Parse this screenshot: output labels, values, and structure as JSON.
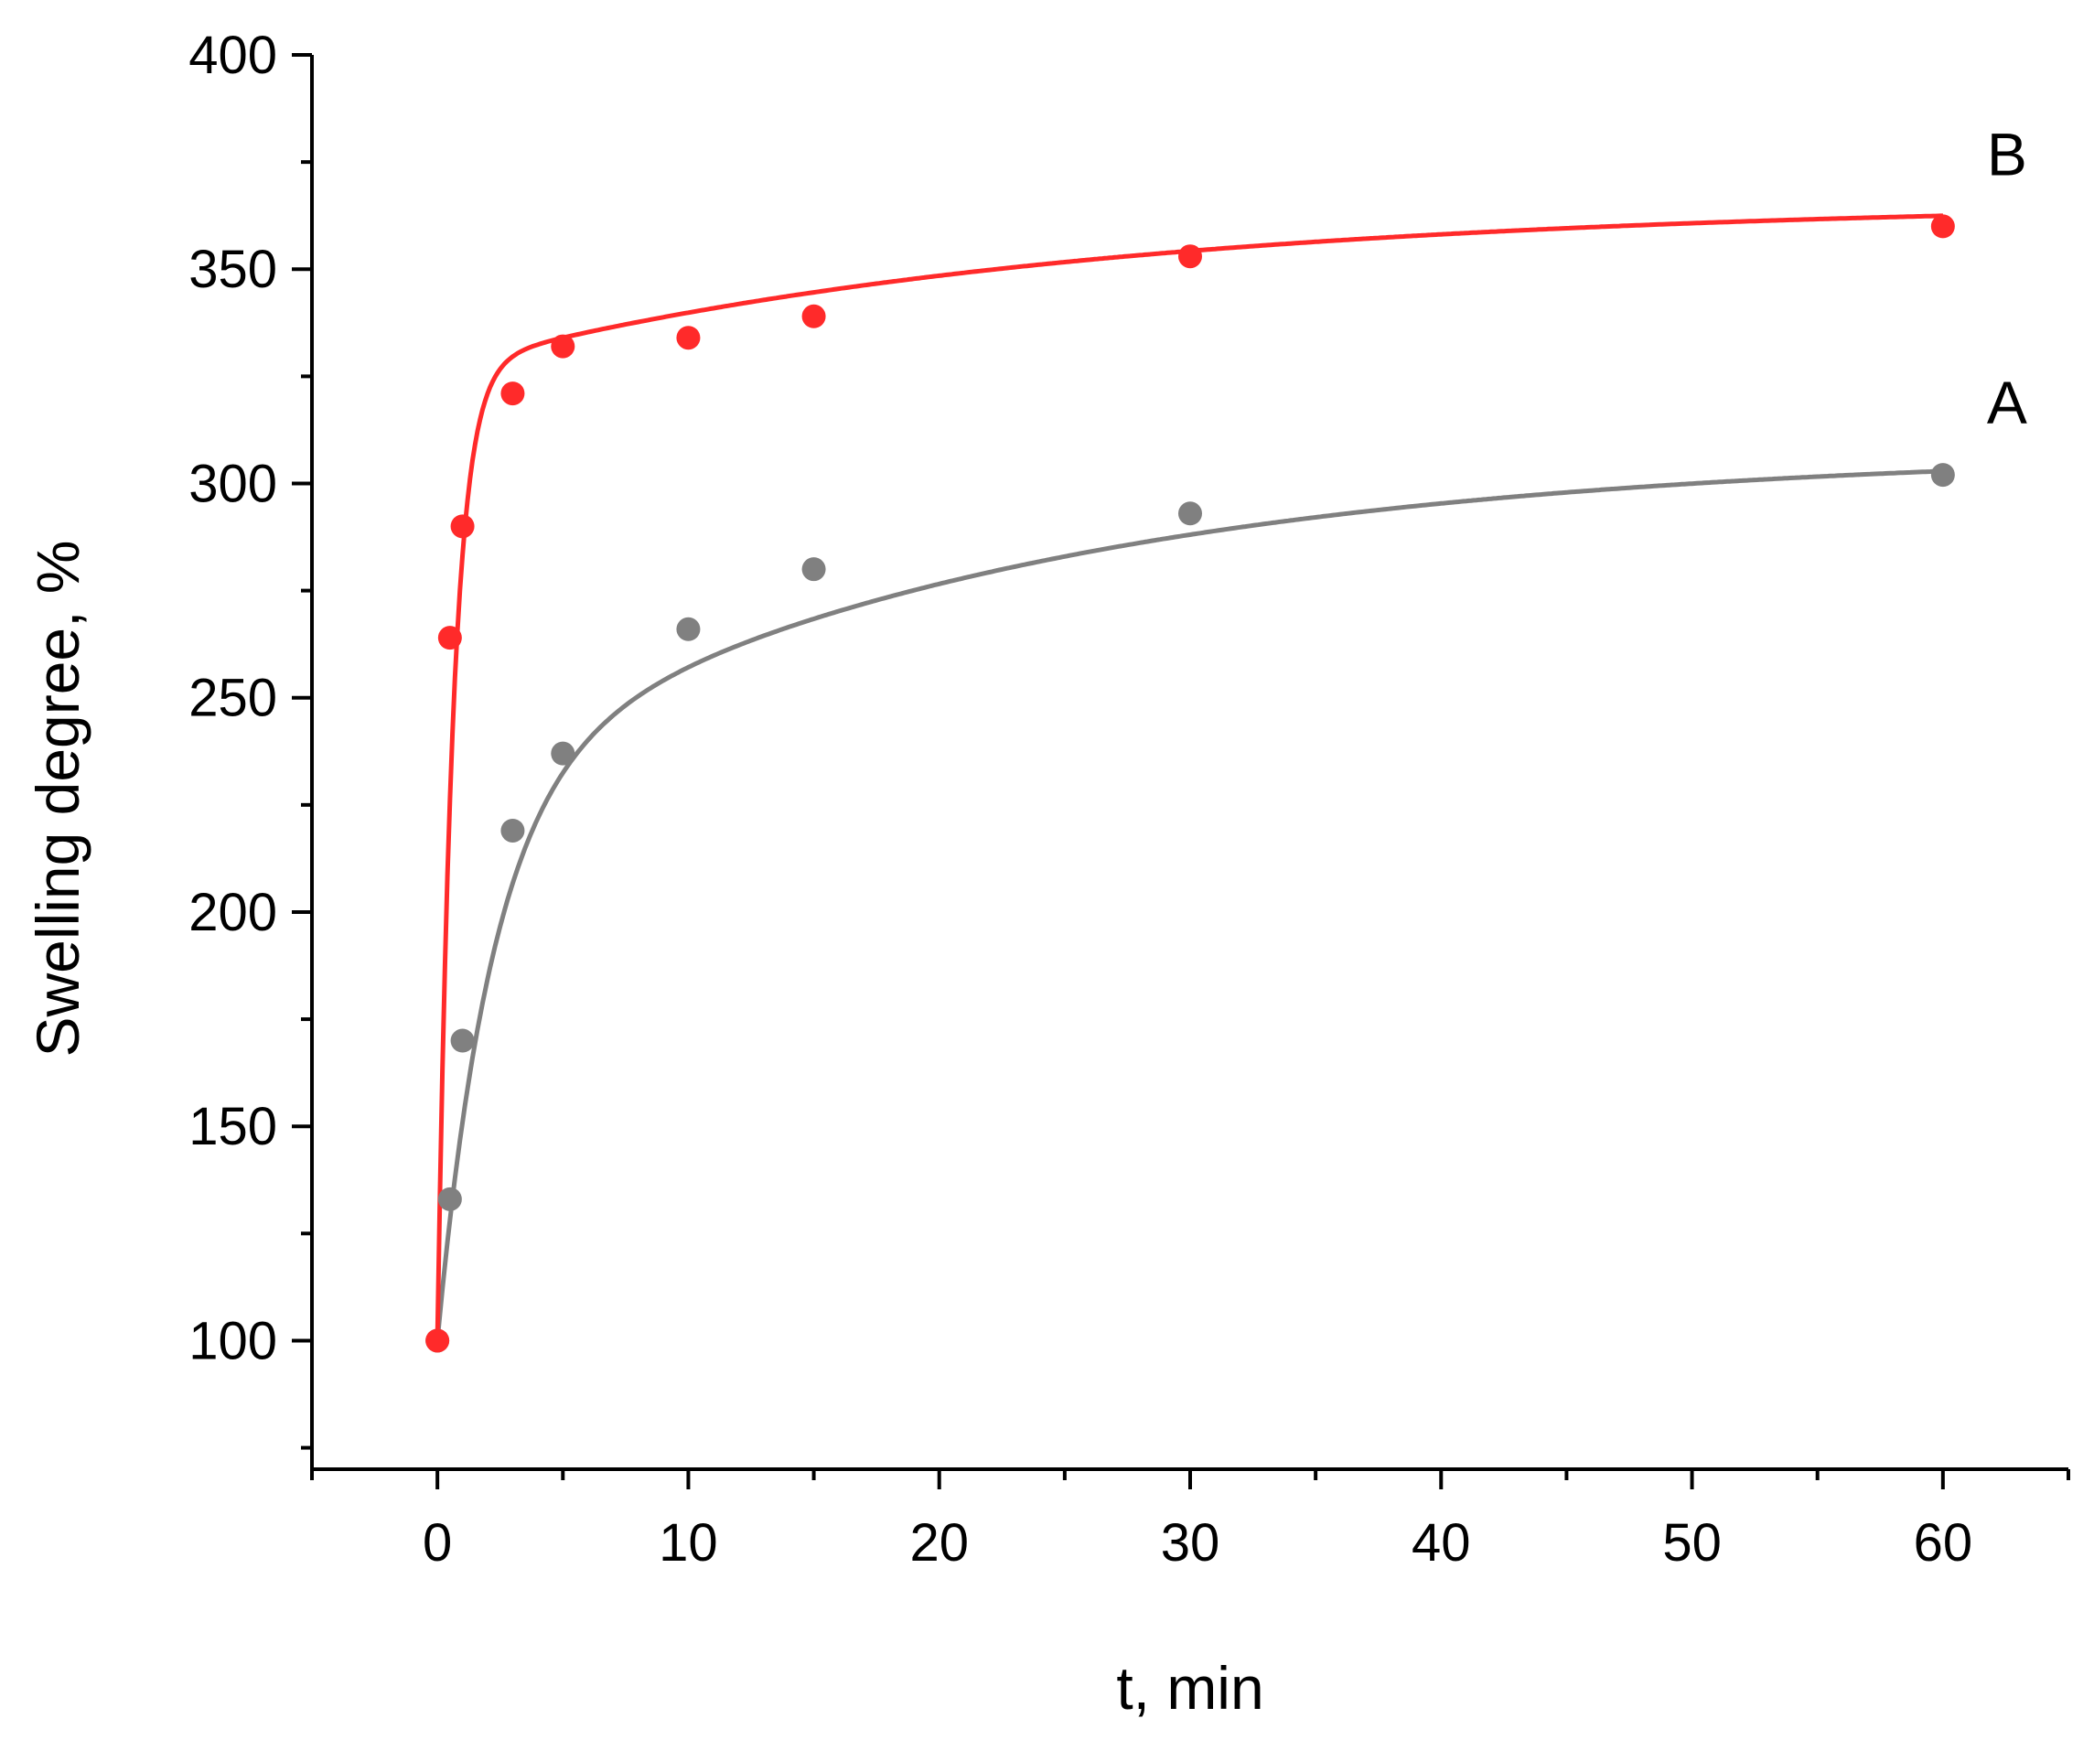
{
  "chart_data": {
    "type": "scatter",
    "title": "",
    "xlabel": "t, min",
    "ylabel": "Swelling degree, %",
    "xlim": [
      -5,
      65
    ],
    "ylim": [
      70,
      400
    ],
    "x_ticks": [
      0,
      10,
      20,
      30,
      40,
      50,
      60
    ],
    "y_ticks": [
      100,
      150,
      200,
      250,
      300,
      350,
      400
    ],
    "grid": false,
    "legend": "none",
    "series": [
      {
        "name": "A",
        "color": "#808080",
        "x": [
          0,
          0.5,
          1,
          3,
          5,
          10,
          15,
          30,
          60
        ],
        "y": [
          100,
          133,
          170,
          219,
          237,
          266,
          280,
          293,
          302
        ]
      },
      {
        "name": "B",
        "color": "#ff2a2a",
        "x": [
          0,
          0.5,
          1,
          3,
          5,
          10,
          15,
          30,
          60
        ],
        "y": [
          100,
          264,
          290,
          321,
          332,
          334,
          339,
          353,
          360
        ]
      }
    ]
  }
}
